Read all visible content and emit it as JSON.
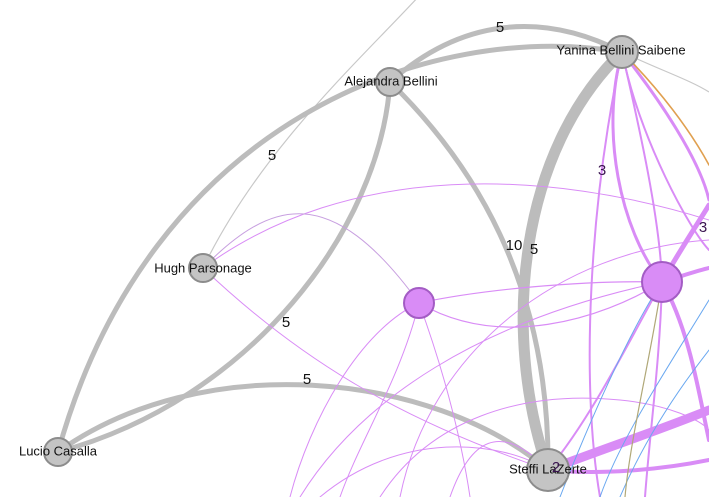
{
  "graph": {
    "type": "network",
    "colors": {
      "gray": "#bdbdbd",
      "node_gray": "#c4c4c4",
      "purple": "#d88cf2",
      "node_purple": "#d98cf6",
      "orange": "#e0a050",
      "blue": "#6aa8f0",
      "olive": "#b0a878"
    },
    "nodes": [
      {
        "id": "yanina",
        "label": "Yanina Bellini Saibene",
        "color": "node_gray"
      },
      {
        "id": "alejandra",
        "label": "Alejandra Bellini",
        "color": "node_gray"
      },
      {
        "id": "hugh",
        "label": "Hugh Parsonage",
        "color": "node_gray"
      },
      {
        "id": "lucio",
        "label": "Lucio Casalla",
        "color": "node_gray"
      },
      {
        "id": "steffi",
        "label": "Steffi LaZerte",
        "color": "node_gray"
      },
      {
        "id": "purple-hub",
        "label": "",
        "color": "node_purple"
      },
      {
        "id": "purple-small",
        "label": "",
        "color": "node_purple"
      }
    ],
    "edge_labels": [
      {
        "id": "yanina-alejandra",
        "text": "5"
      },
      {
        "id": "alejandra-lucio",
        "text": "5"
      },
      {
        "id": "alejandra-steffi",
        "text": "5"
      },
      {
        "id": "lucio-steffi",
        "text": "5"
      },
      {
        "id": "yanina-steffi",
        "text": "10"
      },
      {
        "id": "alejandra-steffi-2",
        "text": "5"
      },
      {
        "id": "yanina-hub",
        "text": "3"
      },
      {
        "id": "hub-right",
        "text": "3"
      },
      {
        "id": "steffi-self",
        "text": "2"
      }
    ]
  }
}
